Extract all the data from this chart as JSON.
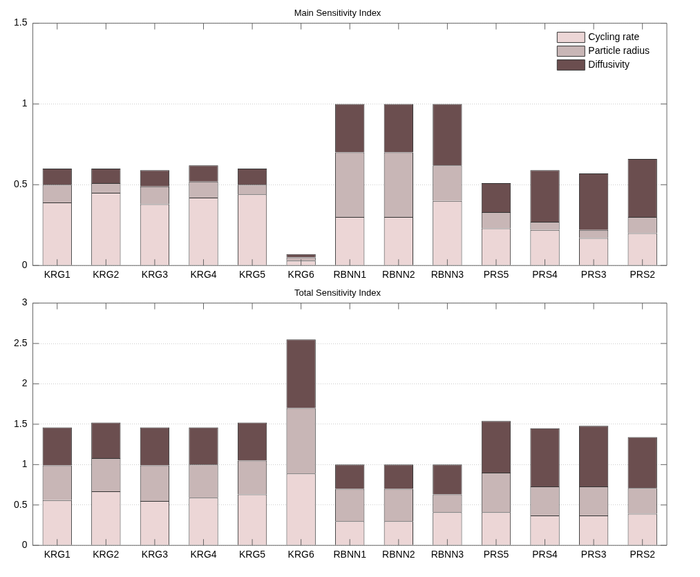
{
  "chart_data": [
    {
      "type": "bar",
      "title": "Main Sensitivity Index",
      "stacked": true,
      "grid": "y",
      "legend": "top right",
      "categories": [
        "KRG1",
        "KRG2",
        "KRG3",
        "KRG4",
        "KRG5",
        "KRG6",
        "RBNN1",
        "RBNN2",
        "RBNN3",
        "PRS5",
        "PRS4",
        "PRS3",
        "PRS2"
      ],
      "ylim": [
        0,
        1.5
      ],
      "yticks": [
        0,
        0.5,
        1,
        1.5
      ],
      "series": [
        {
          "name": "Cycling rate",
          "color": "#ecd6d6",
          "values": [
            0.39,
            0.45,
            0.38,
            0.42,
            0.44,
            0.03,
            0.3,
            0.3,
            0.4,
            0.23,
            0.22,
            0.17,
            0.2
          ]
        },
        {
          "name": "Particle radius",
          "color": "#c8b6b6",
          "values": [
            0.11,
            0.06,
            0.11,
            0.1,
            0.06,
            0.02,
            0.4,
            0.4,
            0.22,
            0.1,
            0.05,
            0.05,
            0.1
          ]
        },
        {
          "name": "Diffusivity",
          "color": "#6b4e4f",
          "values": [
            0.1,
            0.09,
            0.1,
            0.1,
            0.1,
            0.02,
            0.3,
            0.3,
            0.38,
            0.18,
            0.32,
            0.35,
            0.36
          ]
        }
      ]
    },
    {
      "type": "bar",
      "title": "Total Sensitivity Index",
      "stacked": true,
      "grid": "y",
      "categories": [
        "KRG1",
        "KRG2",
        "KRG3",
        "KRG4",
        "KRG5",
        "KRG6",
        "RBNN1",
        "RBNN2",
        "RBNN3",
        "PRS5",
        "PRS4",
        "PRS3",
        "PRS2"
      ],
      "ylim": [
        0,
        3
      ],
      "yticks": [
        0,
        0.5,
        1,
        1.5,
        2,
        2.5,
        3
      ],
      "series": [
        {
          "color": "#ecd6d6",
          "values": [
            0.56,
            0.67,
            0.55,
            0.59,
            0.63,
            0.89,
            0.3,
            0.3,
            0.41,
            0.41,
            0.37,
            0.37,
            0.39
          ]
        },
        {
          "color": "#c8b6b6",
          "values": [
            0.43,
            0.41,
            0.44,
            0.41,
            0.42,
            0.81,
            0.4,
            0.4,
            0.22,
            0.49,
            0.36,
            0.36,
            0.32
          ]
        },
        {
          "color": "#6b4e4f",
          "values": [
            0.47,
            0.44,
            0.47,
            0.46,
            0.47,
            0.85,
            0.3,
            0.3,
            0.37,
            0.64,
            0.72,
            0.75,
            0.63
          ]
        }
      ]
    }
  ]
}
